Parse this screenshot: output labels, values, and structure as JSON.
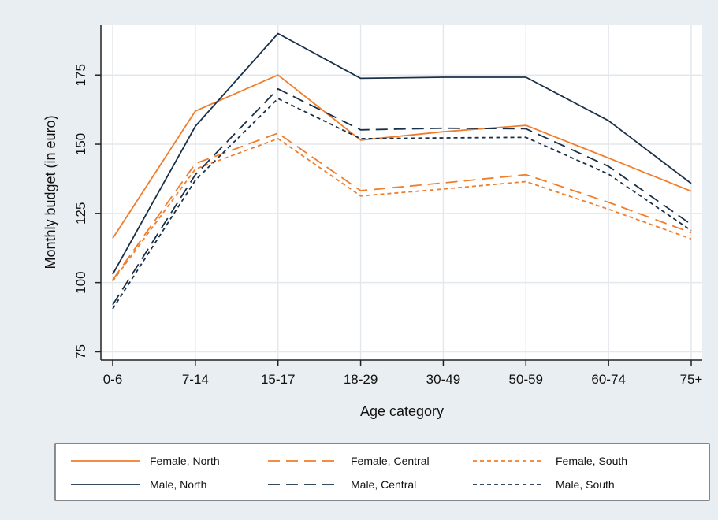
{
  "chart_data": {
    "type": "line",
    "xlabel": "Age category",
    "ylabel": "Monthly budget (in euro)",
    "categories": [
      "0-6",
      "7-14",
      "15-17",
      "18-29",
      "30-49",
      "50-59",
      "60-74",
      "75+"
    ],
    "yticks": [
      75,
      100,
      125,
      150,
      175
    ],
    "ylim": [
      72,
      193
    ],
    "grid": true,
    "legend_position": "bottom",
    "series": [
      {
        "name": "Female, North",
        "color": "#f07d2b",
        "dash": "solid",
        "values": [
          116,
          162,
          175,
          151.5,
          154.5,
          156.8,
          145,
          133
        ]
      },
      {
        "name": "Female, Central",
        "color": "#f07d2b",
        "dash": "long",
        "values": [
          101,
          143,
          154,
          133.2,
          136,
          139,
          129,
          118
        ]
      },
      {
        "name": "Female, South",
        "color": "#f07d2b",
        "dash": "short",
        "values": [
          100.5,
          141,
          152,
          131.3,
          133.8,
          136.5,
          126.5,
          115.8
        ]
      },
      {
        "name": "Male, North",
        "color": "#1a3049",
        "dash": "solid",
        "values": [
          103,
          156.5,
          190,
          173.8,
          174.2,
          174.2,
          158.5,
          135.8
        ]
      },
      {
        "name": "Male, Central",
        "color": "#1a3049",
        "dash": "long",
        "values": [
          92,
          139,
          170,
          155.2,
          155.8,
          155.6,
          142,
          121
        ]
      },
      {
        "name": "Male, South",
        "color": "#1a3049",
        "dash": "short",
        "values": [
          90.5,
          137,
          166.5,
          152,
          152.3,
          152.5,
          139.2,
          118.8
        ]
      }
    ]
  }
}
